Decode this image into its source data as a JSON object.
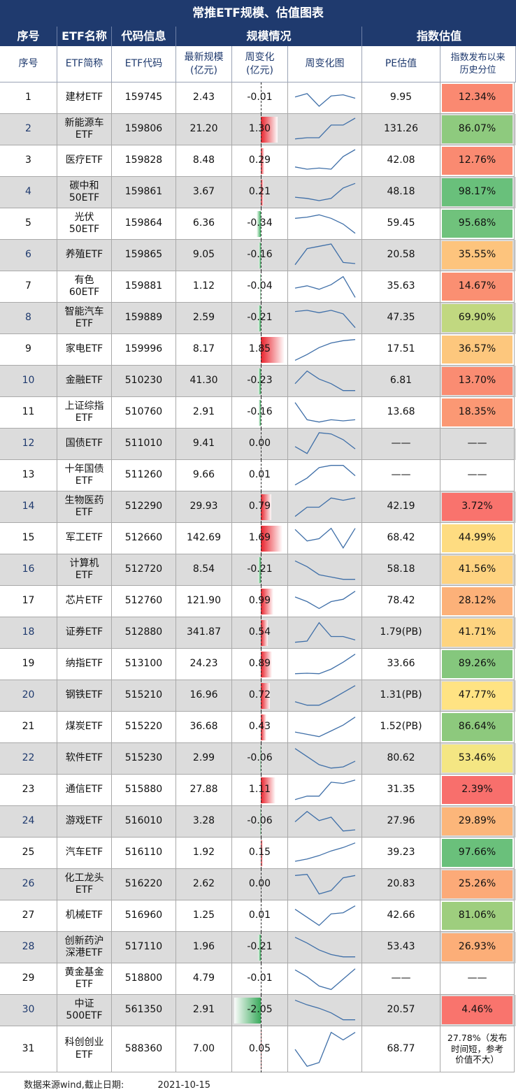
{
  "title": "常推ETF规模、估值图表",
  "header1": {
    "idx": "序号",
    "name": "ETF名称",
    "code": "代码信息",
    "scale": "规模情况",
    "valuation": "指数估值"
  },
  "header2": {
    "idx": "序号",
    "name": "ETF简称",
    "code": "ETF代码",
    "scale": "最新规模\n(亿元)",
    "chg": "周变化\n(亿元)",
    "spark": "周变化图",
    "pe": "PE估值",
    "pct": "指数发布以来\n历史分位"
  },
  "colors": {
    "header_bg": "#1f3a6e",
    "bar_positive": "#e8202a",
    "bar_negative": "#3aaa5c",
    "pct_red": "#f8696b",
    "pct_yellow": "#ffe984",
    "pct_green": "#63be7b"
  },
  "rows": [
    {
      "idx": "1",
      "name": "建材ETF",
      "code": "159745",
      "scale": "2.43",
      "chg": "-0.01",
      "pe": "9.95",
      "pct": "12.34%",
      "spark": [
        0.55,
        0.7,
        0.15,
        0.6,
        0.65,
        0.5
      ]
    },
    {
      "idx": "2",
      "name": "新能源车\nETF",
      "code": "159806",
      "scale": "21.20",
      "chg": "1.30",
      "pe": "131.26",
      "pct": "86.07%",
      "spark": [
        0.1,
        0.15,
        0.15,
        0.7,
        0.7,
        1.0
      ]
    },
    {
      "idx": "3",
      "name": "医疗ETF",
      "code": "159828",
      "scale": "8.48",
      "chg": "0.29",
      "pe": "42.08",
      "pct": "12.76%",
      "spark": [
        0.25,
        0.15,
        0.2,
        0.15,
        0.7,
        1.0
      ]
    },
    {
      "idx": "4",
      "name": "碳中和\n50ETF",
      "code": "159861",
      "scale": "3.67",
      "chg": "0.21",
      "pe": "48.18",
      "pct": "98.17%",
      "spark": [
        0.3,
        0.25,
        0.15,
        0.25,
        0.7,
        0.9
      ]
    },
    {
      "idx": "5",
      "name": "光伏\n50ETF",
      "code": "159864",
      "scale": "6.36",
      "chg": "-0.34",
      "pe": "59.45",
      "pct": "95.68%",
      "spark": [
        0.75,
        0.8,
        0.9,
        0.75,
        0.5,
        0.1
      ]
    },
    {
      "idx": "6",
      "name": "养殖ETF",
      "code": "159865",
      "scale": "9.05",
      "chg": "-0.16",
      "pe": "20.58",
      "pct": "35.55%",
      "spark": [
        0.1,
        0.8,
        0.9,
        1.0,
        0.2,
        0.15
      ]
    },
    {
      "idx": "7",
      "name": "有色\n60ETF",
      "code": "159881",
      "scale": "1.12",
      "chg": "-0.04",
      "pe": "35.63",
      "pct": "14.67%",
      "spark": [
        0.45,
        0.55,
        0.4,
        0.6,
        0.95,
        0.05
      ]
    },
    {
      "idx": "8",
      "name": "智能汽车\nETF",
      "code": "159889",
      "scale": "2.59",
      "chg": "-0.21",
      "pe": "47.35",
      "pct": "69.90%",
      "spark": [
        0.8,
        0.85,
        0.75,
        0.85,
        0.7,
        0.1
      ]
    },
    {
      "idx": "9",
      "name": "家电ETF",
      "code": "159996",
      "scale": "8.17",
      "chg": "1.85",
      "pe": "17.51",
      "pct": "36.57%",
      "spark": [
        0.05,
        0.3,
        0.6,
        0.8,
        0.9,
        0.95
      ]
    },
    {
      "idx": "10",
      "name": "金融ETF",
      "code": "510230",
      "scale": "41.30",
      "chg": "-0.23",
      "pe": "6.81",
      "pct": "13.70%",
      "spark": [
        0.4,
        0.95,
        0.6,
        0.4,
        0.1,
        0.1
      ]
    },
    {
      "idx": "11",
      "name": "上证综指\nETF",
      "code": "510760",
      "scale": "2.91",
      "chg": "-0.16",
      "pe": "13.68",
      "pct": "18.35%",
      "spark": [
        0.95,
        0.2,
        0.1,
        0.2,
        0.15,
        0.2
      ]
    },
    {
      "idx": "12",
      "name": "国债ETF",
      "code": "511010",
      "scale": "9.41",
      "chg": "0.00",
      "pe": "——",
      "pct": "——",
      "spark": [
        0.4,
        0.1,
        1.0,
        0.95,
        0.7,
        0.3
      ]
    },
    {
      "idx": "13",
      "name": "十年国债\nETF",
      "code": "511260",
      "scale": "9.66",
      "chg": "0.01",
      "pe": "——",
      "pct": "——",
      "spark": [
        0.1,
        0.4,
        0.85,
        0.95,
        0.95,
        0.5
      ]
    },
    {
      "idx": "14",
      "name": "生物医药\nETF",
      "code": "512290",
      "scale": "29.93",
      "chg": "0.79",
      "pe": "42.19",
      "pct": "3.72%",
      "spark": [
        0.1,
        0.5,
        0.5,
        0.9,
        0.8,
        0.9
      ]
    },
    {
      "idx": "15",
      "name": "军工ETF",
      "code": "512660",
      "scale": "142.69",
      "chg": "1.69",
      "pe": "68.42",
      "pct": "44.99%",
      "spark": [
        0.9,
        0.4,
        0.5,
        0.95,
        0.1,
        0.95
      ]
    },
    {
      "idx": "16",
      "name": "计算机\nETF",
      "code": "512720",
      "scale": "8.54",
      "chg": "-0.21",
      "pe": "58.18",
      "pct": "41.56%",
      "spark": [
        0.9,
        0.65,
        0.3,
        0.2,
        0.1,
        0.1
      ]
    },
    {
      "idx": "17",
      "name": "芯片ETF",
      "code": "512760",
      "scale": "121.90",
      "chg": "0.99",
      "pe": "78.42",
      "pct": "28.12%",
      "spark": [
        0.7,
        0.5,
        0.2,
        0.5,
        0.6,
        0.95
      ]
    },
    {
      "idx": "18",
      "name": "证券ETF",
      "code": "512880",
      "scale": "341.87",
      "chg": "0.54",
      "pe": "1.79(PB)",
      "pct": "41.71%",
      "spark": [
        0.1,
        0.15,
        0.95,
        0.35,
        0.35,
        0.2
      ]
    },
    {
      "idx": "19",
      "name": "纳指ETF",
      "code": "513100",
      "scale": "24.23",
      "chg": "0.89",
      "pe": "33.66",
      "pct": "89.26%",
      "spark": [
        0.1,
        0.12,
        0.1,
        0.3,
        0.6,
        0.95
      ]
    },
    {
      "idx": "20",
      "name": "钢铁ETF",
      "code": "515210",
      "scale": "16.96",
      "chg": "0.72",
      "pe": "1.31(PB)",
      "pct": "47.77%",
      "spark": [
        0.25,
        0.1,
        0.1,
        0.35,
        0.65,
        0.95
      ]
    },
    {
      "idx": "21",
      "name": "煤炭ETF",
      "code": "515220",
      "scale": "36.68",
      "chg": "0.43",
      "pe": "1.52(PB)",
      "pct": "86.64%",
      "spark": [
        0.3,
        0.2,
        0.1,
        0.35,
        0.6,
        0.95
      ]
    },
    {
      "idx": "22",
      "name": "软件ETF",
      "code": "515230",
      "scale": "2.99",
      "chg": "-0.06",
      "pe": "80.62",
      "pct": "53.46%",
      "spark": [
        0.95,
        0.6,
        0.25,
        0.1,
        0.15,
        0.4
      ]
    },
    {
      "idx": "23",
      "name": "通信ETF",
      "code": "515880",
      "scale": "27.88",
      "chg": "1.11",
      "pe": "31.35",
      "pct": "2.39%",
      "spark": [
        0.1,
        0.25,
        0.25,
        0.85,
        0.8,
        0.95
      ]
    },
    {
      "idx": "24",
      "name": "游戏ETF",
      "code": "516010",
      "scale": "3.28",
      "chg": "-0.06",
      "pe": "27.96",
      "pct": "29.89%",
      "spark": [
        0.5,
        0.95,
        0.55,
        0.7,
        0.1,
        0.15
      ]
    },
    {
      "idx": "25",
      "name": "汽车ETF",
      "code": "516110",
      "scale": "1.92",
      "chg": "0.15",
      "pe": "39.23",
      "pct": "97.66%",
      "spark": [
        0.15,
        0.25,
        0.4,
        0.6,
        0.75,
        0.95
      ]
    },
    {
      "idx": "26",
      "name": "化工龙头\nETF",
      "code": "516220",
      "scale": "2.62",
      "chg": "0.00",
      "pe": "20.83",
      "pct": "25.26%",
      "spark": [
        0.9,
        0.95,
        0.1,
        0.25,
        0.8,
        0.9
      ]
    },
    {
      "idx": "27",
      "name": "机械ETF",
      "code": "516960",
      "scale": "1.25",
      "chg": "0.01",
      "pe": "42.66",
      "pct": "81.06%",
      "spark": [
        0.8,
        0.45,
        0.1,
        0.6,
        0.65,
        0.95
      ]
    },
    {
      "idx": "28",
      "name": "创新药沪\n深港ETF",
      "code": "517110",
      "scale": "1.96",
      "chg": "-0.21",
      "pe": "53.43",
      "pct": "26.93%",
      "spark": [
        0.95,
        0.7,
        0.4,
        0.2,
        0.1,
        0.1
      ]
    },
    {
      "idx": "29",
      "name": "黄金基金\nETF",
      "code": "518800",
      "scale": "4.79",
      "chg": "-0.01",
      "pe": "——",
      "pct": "——",
      "spark": [
        0.9,
        0.6,
        0.2,
        0.05,
        0.5,
        0.95
      ]
    },
    {
      "idx": "30",
      "name": "中证\n500ETF",
      "code": "561350",
      "scale": "2.91",
      "chg": "-2.05",
      "pe": "20.57",
      "pct": "4.46%",
      "spark": [
        0.95,
        0.75,
        0.6,
        0.4,
        0.1,
        0.1
      ]
    },
    {
      "idx": "31",
      "name": "科创创业\nETF",
      "code": "588360",
      "scale": "7.00",
      "chg": "0.05",
      "pe": "68.77",
      "pct": "27.78%（发布\n时间短，参考\n价值不大）",
      "spark": [
        0.5,
        0.05,
        0.15,
        0.95,
        0.75,
        0.95
      ]
    }
  ],
  "footer": {
    "source": "数据来源wind,截止日期:",
    "date": "2021-10-15"
  }
}
